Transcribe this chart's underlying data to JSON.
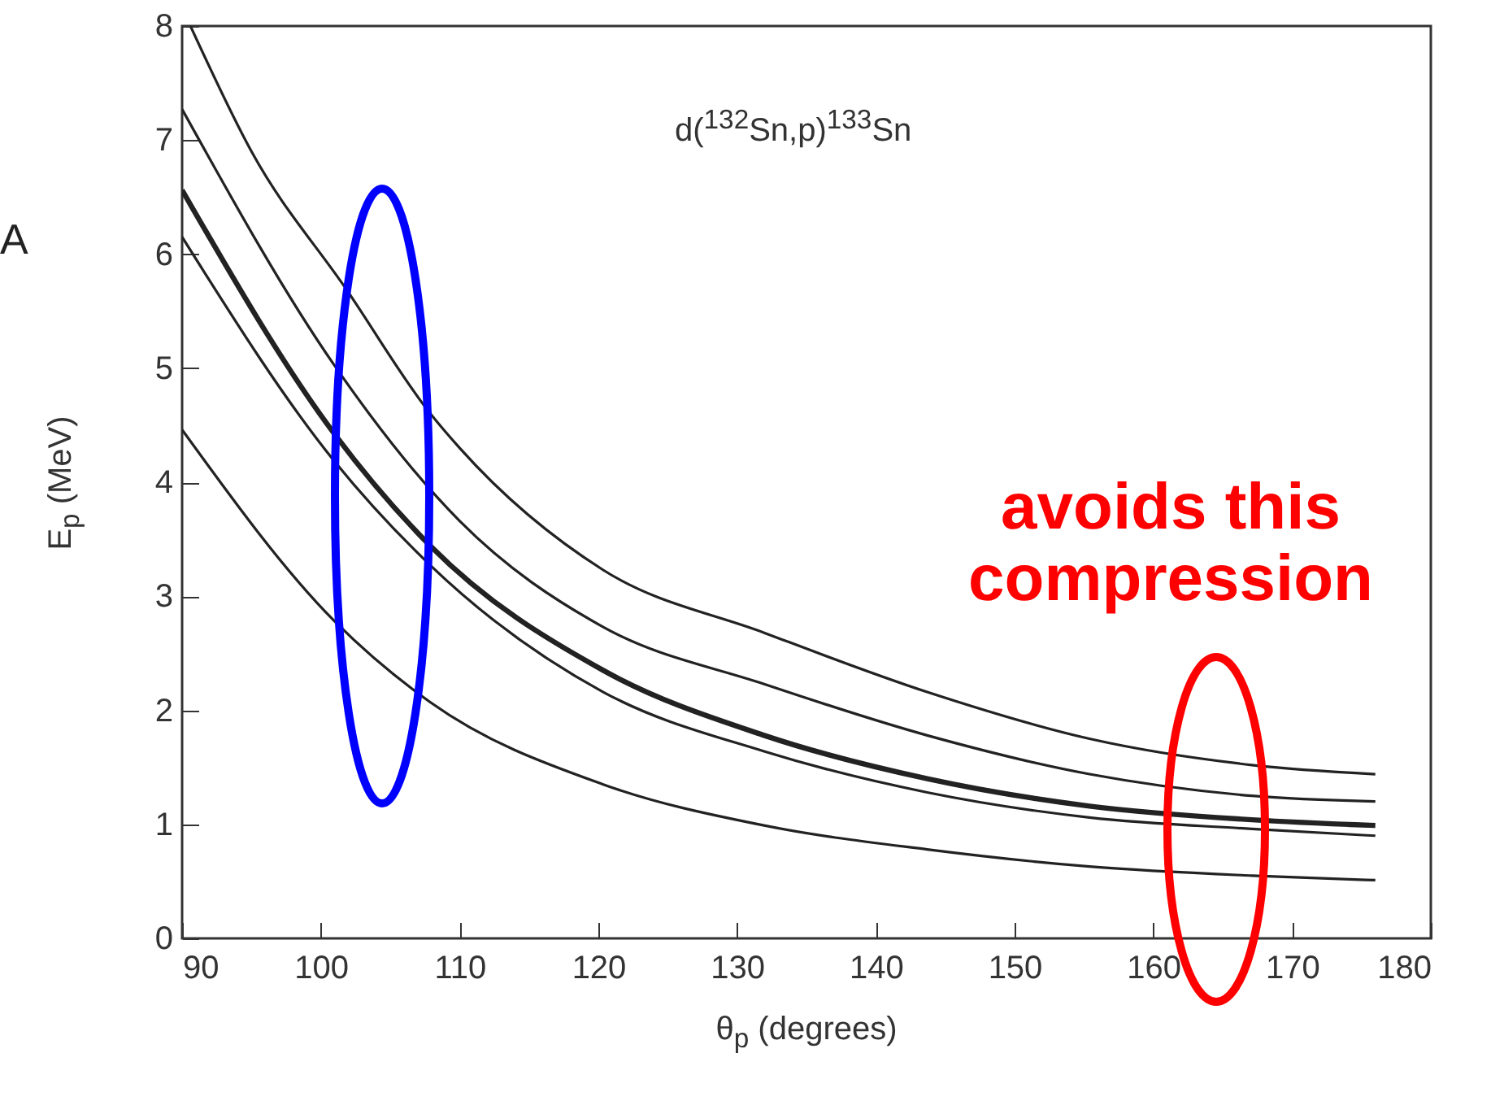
{
  "chart_data": {
    "type": "line",
    "xlabel": "θ$_{p}$ (degrees)",
    "ylabel": "E$_{p}$ (MeV)",
    "annotations": [
      "A",
      "d($^{132}$Sn,p)$^{133}$Sn",
      "avoids this compression"
    ],
    "xlim": [
      90,
      180
    ],
    "xticks": [
      90,
      100,
      110,
      120,
      130,
      140,
      150,
      160,
      170,
      180
    ],
    "ylim": [
      0,
      8
    ],
    "yticks": [
      0,
      1,
      2,
      3,
      4,
      5,
      6,
      7,
      8
    ],
    "grid": false,
    "marker": "none",
    "line_style": "solid",
    "series": [
      {
        "color": "#222222",
        "x": [
          90.6,
          95,
          101.9,
          107.9,
          110,
          120.35,
          131.95,
          143.7,
          155.4,
          167.1,
          176
        ],
        "values": [
          8.0,
          6.9,
          5.68,
          4.6,
          4.3,
          3.23,
          2.68,
          2.16,
          1.75,
          1.52,
          1.44
        ]
      },
      {
        "color": "#222222",
        "x": [
          90,
          101,
          110,
          120.35,
          131.95,
          143.7,
          155.4,
          167.1,
          176
        ],
        "values": [
          7.27,
          5.02,
          3.66,
          2.73,
          2.23,
          1.78,
          1.44,
          1.25,
          1.2
        ]
      },
      {
        "color": "#222222",
        "x": [
          90,
          101,
          107.9,
          120.35,
          131.95,
          143.7,
          155.4,
          167.1,
          176
        ],
        "values": [
          6.56,
          4.42,
          3.44,
          2.35,
          1.78,
          1.4,
          1.16,
          1.04,
          0.99
        ]
      },
      {
        "color": "#222222",
        "x": [
          90,
          101,
          107.9,
          120.35,
          131.95,
          143.7,
          155.4,
          167.1,
          176
        ],
        "values": [
          6.15,
          4.18,
          3.27,
          2.16,
          1.64,
          1.28,
          1.06,
          0.96,
          0.9
        ]
      },
      {
        "color": "#222222",
        "x": [
          90,
          101,
          107.9,
          120.35,
          131.95,
          143.7,
          155.4,
          167.1,
          176
        ],
        "values": [
          4.46,
          2.78,
          2.07,
          1.35,
          0.99,
          0.78,
          0.63,
          0.55,
          0.51
        ]
      }
    ]
  }
}
